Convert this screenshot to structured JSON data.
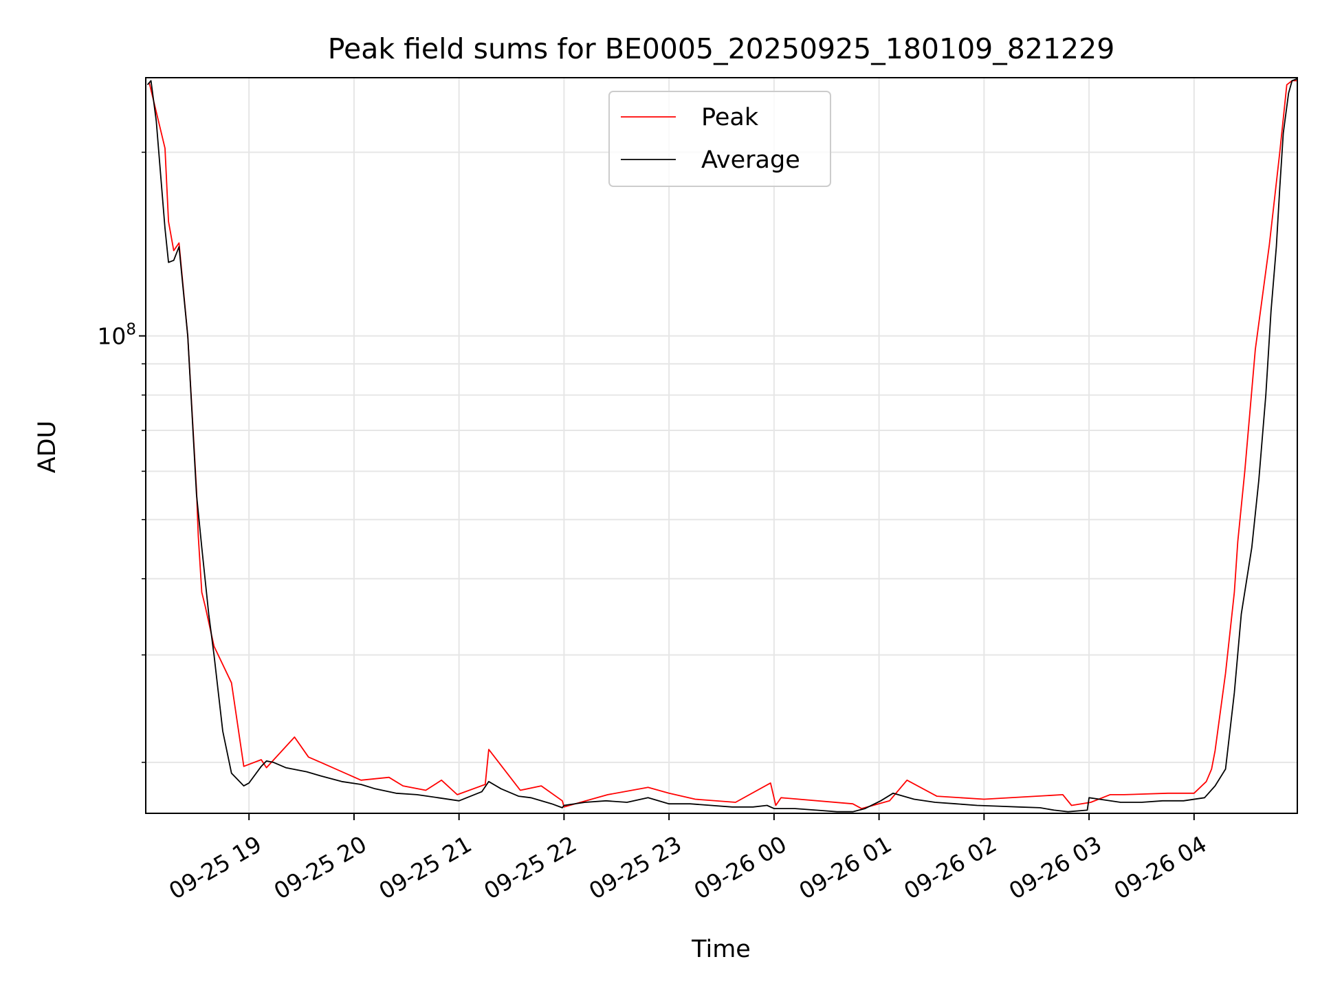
{
  "chart_data": {
    "type": "line",
    "title": "Peak field sums for BE0005_20250925_180109_821229",
    "xlabel": "Time",
    "ylabel": "ADU",
    "y_scale": "log",
    "ylim": [
      16500000,
      265000000
    ],
    "xlim": [
      "2025-09-25 18:01",
      "2025-09-26 04:59"
    ],
    "grid": true,
    "legend_position": "upper center",
    "x_tick_labels": [
      "09-25 19",
      "09-25 20",
      "09-25 21",
      "09-25 22",
      "09-25 23",
      "09-26 00",
      "09-26 01",
      "09-26 02",
      "09-26 03",
      "09-26 04"
    ],
    "x_ticks": [
      "2025-09-25 19:00",
      "2025-09-25 20:00",
      "2025-09-25 21:00",
      "2025-09-25 22:00",
      "2025-09-25 23:00",
      "2025-09-26 00:00",
      "2025-09-26 01:00",
      "2025-09-26 02:00",
      "2025-09-26 03:00",
      "2025-09-26 04:00"
    ],
    "y_major_ticks": [
      {
        "value": 100000000,
        "label": "10^8"
      }
    ],
    "series": [
      {
        "name": "Peak",
        "color": "#ff0000",
        "x": [
          "2025-09-25 18:03",
          "2025-09-25 18:12",
          "2025-09-25 18:14",
          "2025-09-25 18:17",
          "2025-09-25 18:20",
          "2025-09-25 18:25",
          "2025-09-25 18:30",
          "2025-09-25 18:31",
          "2025-09-25 18:33",
          "2025-09-25 18:35",
          "2025-09-25 18:40",
          "2025-09-25 18:50",
          "2025-09-25 18:57",
          "2025-09-25 19:07",
          "2025-09-25 19:10",
          "2025-09-25 19:26",
          "2025-09-25 19:34",
          "2025-09-25 19:41",
          "2025-09-25 20:04",
          "2025-09-25 20:20",
          "2025-09-25 20:28",
          "2025-09-25 20:41",
          "2025-09-25 20:50",
          "2025-09-25 20:59",
          "2025-09-25 21:15",
          "2025-09-25 21:17",
          "2025-09-25 21:35",
          "2025-09-25 21:47",
          "2025-09-25 21:59",
          "2025-09-25 22:00",
          "2025-09-25 22:25",
          "2025-09-25 22:48",
          "2025-09-25 23:00",
          "2025-09-25 23:15",
          "2025-09-25 23:38",
          "2025-09-25 23:58",
          "2025-09-26 00:01",
          "2025-09-26 00:04",
          "2025-09-26 00:45",
          "2025-09-26 00:50",
          "2025-09-26 01:06",
          "2025-09-26 01:16",
          "2025-09-26 01:33",
          "2025-09-26 02:00",
          "2025-09-26 02:45",
          "2025-09-26 02:50",
          "2025-09-26 03:01",
          "2025-09-26 03:12",
          "2025-09-26 03:20",
          "2025-09-26 03:45",
          "2025-09-26 04:00",
          "2025-09-26 04:07",
          "2025-09-26 04:10",
          "2025-09-26 04:12",
          "2025-09-26 04:18",
          "2025-09-26 04:23",
          "2025-09-26 04:25",
          "2025-09-26 04:29",
          "2025-09-26 04:35",
          "2025-09-26 04:43",
          "2025-09-26 04:49",
          "2025-09-26 04:53",
          "2025-09-26 04:56",
          "2025-09-26 04:59"
        ],
        "y": [
          260000000,
          203000000,
          154000000,
          138000000,
          142000000,
          100000000,
          56000000,
          47000000,
          38000000,
          36000000,
          31000000,
          27000000,
          19700000,
          20200000,
          19600000,
          22000000,
          20400000,
          20000000,
          18700000,
          18900000,
          18300000,
          18000000,
          18700000,
          17700000,
          18400000,
          21000000,
          18000000,
          18300000,
          17300000,
          16900000,
          17700000,
          18200000,
          17800000,
          17400000,
          17200000,
          18500000,
          17000000,
          17500000,
          17100000,
          16800000,
          17300000,
          18700000,
          17600000,
          17400000,
          17700000,
          17000000,
          17200000,
          17700000,
          17700000,
          17800000,
          17800000,
          18600000,
          19500000,
          20900000,
          28000000,
          38000000,
          46000000,
          60000000,
          95000000,
          141000000,
          200000000,
          258000000,
          262000000,
          262000000
        ]
      },
      {
        "name": "Average",
        "color": "#000000",
        "x": [
          "2025-09-25 18:02",
          "2025-09-25 18:04",
          "2025-09-25 18:07",
          "2025-09-25 18:12",
          "2025-09-25 18:14",
          "2025-09-25 18:17",
          "2025-09-25 18:20",
          "2025-09-25 18:25",
          "2025-09-25 18:30",
          "2025-09-25 18:33",
          "2025-09-25 18:37",
          "2025-09-25 18:40",
          "2025-09-25 18:45",
          "2025-09-25 18:50",
          "2025-09-25 18:57",
          "2025-09-25 19:00",
          "2025-09-25 19:07",
          "2025-09-25 19:10",
          "2025-09-25 19:14",
          "2025-09-25 19:21",
          "2025-09-25 19:33",
          "2025-09-25 19:41",
          "2025-09-25 19:53",
          "2025-09-25 20:04",
          "2025-09-25 20:12",
          "2025-09-25 20:24",
          "2025-09-25 20:36",
          "2025-09-25 20:48",
          "2025-09-25 21:00",
          "2025-09-25 21:13",
          "2025-09-25 21:17",
          "2025-09-25 21:24",
          "2025-09-25 21:34",
          "2025-09-25 21:41",
          "2025-09-25 21:53",
          "2025-09-25 21:59",
          "2025-09-25 22:00",
          "2025-09-25 22:12",
          "2025-09-25 22:24",
          "2025-09-25 22:36",
          "2025-09-25 22:48",
          "2025-09-25 23:00",
          "2025-09-25 23:12",
          "2025-09-25 23:24",
          "2025-09-25 23:36",
          "2025-09-25 23:48",
          "2025-09-25 23:56",
          "2025-09-26 00:00",
          "2025-09-26 00:12",
          "2025-09-26 00:24",
          "2025-09-26 00:36",
          "2025-09-26 00:45",
          "2025-09-26 00:52",
          "2025-09-26 01:01",
          "2025-09-26 01:08",
          "2025-09-26 01:20",
          "2025-09-26 01:32",
          "2025-09-26 01:44",
          "2025-09-26 01:56",
          "2025-09-26 02:08",
          "2025-09-26 02:20",
          "2025-09-26 02:32",
          "2025-09-26 02:40",
          "2025-09-26 02:48",
          "2025-09-26 02:59",
          "2025-09-26 03:00",
          "2025-09-26 03:06",
          "2025-09-26 03:18",
          "2025-09-26 03:30",
          "2025-09-26 03:42",
          "2025-09-26 03:54",
          "2025-09-26 04:06",
          "2025-09-26 04:12",
          "2025-09-26 04:18",
          "2025-09-26 04:23",
          "2025-09-26 04:27",
          "2025-09-26 04:33",
          "2025-09-26 04:37",
          "2025-09-26 04:41",
          "2025-09-26 04:44",
          "2025-09-26 04:47",
          "2025-09-26 04:49",
          "2025-09-26 04:51",
          "2025-09-26 04:54",
          "2025-09-26 04:56",
          "2025-09-26 04:59"
        ],
        "y": [
          258000000,
          262000000,
          225000000,
          150000000,
          132000000,
          133000000,
          140000000,
          100000000,
          55000000,
          45000000,
          35000000,
          30000000,
          22500000,
          19200000,
          18300000,
          18500000,
          19700000,
          20100000,
          20000000,
          19600000,
          19300000,
          19000000,
          18600000,
          18400000,
          18100000,
          17800000,
          17700000,
          17500000,
          17300000,
          17900000,
          18600000,
          18100000,
          17600000,
          17500000,
          17100000,
          16850000,
          17000000,
          17200000,
          17300000,
          17200000,
          17500000,
          17100000,
          17100000,
          17000000,
          16900000,
          16900000,
          17000000,
          16800000,
          16800000,
          16700000,
          16600000,
          16600000,
          16800000,
          17300000,
          17800000,
          17400000,
          17200000,
          17100000,
          17000000,
          16950000,
          16900000,
          16850000,
          16700000,
          16600000,
          16700000,
          17500000,
          17400000,
          17200000,
          17200000,
          17300000,
          17300000,
          17500000,
          18300000,
          19500000,
          26000000,
          35000000,
          45000000,
          58000000,
          80000000,
          110000000,
          140000000,
          175000000,
          215000000,
          250000000,
          262000000,
          264000000
        ]
      }
    ]
  }
}
